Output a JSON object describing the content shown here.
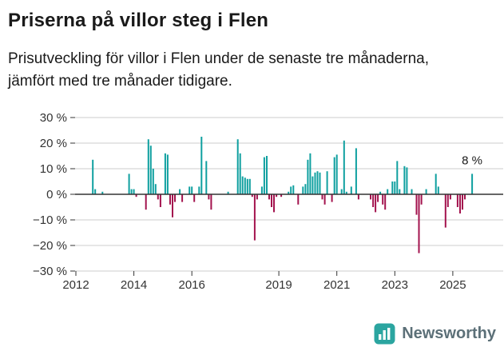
{
  "header": {
    "title": "Priserna på villor steg i Flen",
    "subtitle": "Prisutveckling för villor i Flen under de senaste tre månaderna, jämfört med tre månader tidigare."
  },
  "logo": {
    "name": "Newsworthy",
    "icon": "bar-chart-icon"
  },
  "chart_data": {
    "type": "bar",
    "title": "Priserna på villor steg i Flen",
    "subtitle": "Prisutveckling för villor i Flen under de senaste tre månaderna, jämfört med tre månader tidigare.",
    "unit": "%",
    "frequency": "monthly",
    "x_start": {
      "year": 2012,
      "month": 7
    },
    "x_end": {
      "year": 2025,
      "month": 9
    },
    "ylim": [
      -30,
      30
    ],
    "ytick_values": [
      30,
      20,
      10,
      0,
      -10,
      -20,
      -30
    ],
    "yticks": [
      "30 %",
      "20 %",
      "10 %",
      "0 %",
      "−10 %",
      "−20 %",
      "−30 %"
    ],
    "xticks": [
      2012,
      2014,
      2016,
      2019,
      2021,
      2023,
      2025
    ],
    "grid": true,
    "legend": "none",
    "last_value_label": "8 %",
    "last_value": 8,
    "colors": {
      "positive": "#0fa0a0",
      "negative": "#a3134e",
      "grid": "#cccccc",
      "axis": "#333333",
      "text": "#333333"
    },
    "values": [
      0,
      13.5,
      2,
      0,
      0,
      1,
      0,
      0,
      0,
      0,
      0,
      0,
      0,
      0,
      0,
      0,
      8,
      2,
      2,
      -1,
      0,
      0,
      0,
      -6,
      21.5,
      19,
      10,
      4,
      -2,
      -5,
      0,
      16,
      15.5,
      -4,
      -9,
      -3,
      0,
      2,
      -3,
      0,
      0,
      3,
      3,
      -3,
      0,
      3,
      22.5,
      0,
      13,
      -2,
      -6,
      0,
      0,
      0,
      0,
      0,
      0,
      1,
      0,
      0,
      0,
      21.5,
      16,
      7,
      6.5,
      6,
      6,
      -1,
      -18,
      -2,
      0,
      3,
      14.5,
      15,
      -2,
      -5,
      -7,
      -1,
      0,
      -1,
      0,
      0,
      1,
      3,
      3.5,
      0,
      -4,
      0,
      3,
      4,
      13.5,
      16,
      7,
      8.5,
      9,
      8.5,
      -2,
      -4,
      9,
      0,
      -3,
      14.5,
      15.5,
      0,
      2,
      21,
      1,
      0,
      3,
      0,
      18,
      -2,
      0,
      0,
      0,
      0,
      -2,
      -5,
      -7,
      -3,
      1,
      -4,
      -6,
      2,
      0,
      5,
      5,
      13,
      2,
      0,
      11,
      10.5,
      0,
      2,
      0,
      -8,
      -23,
      -4,
      0,
      2,
      0,
      0,
      0,
      8,
      3,
      0,
      0,
      -13,
      -5,
      -2,
      0,
      0,
      -5,
      -7.5,
      -6,
      -2,
      0,
      0,
      8
    ]
  }
}
